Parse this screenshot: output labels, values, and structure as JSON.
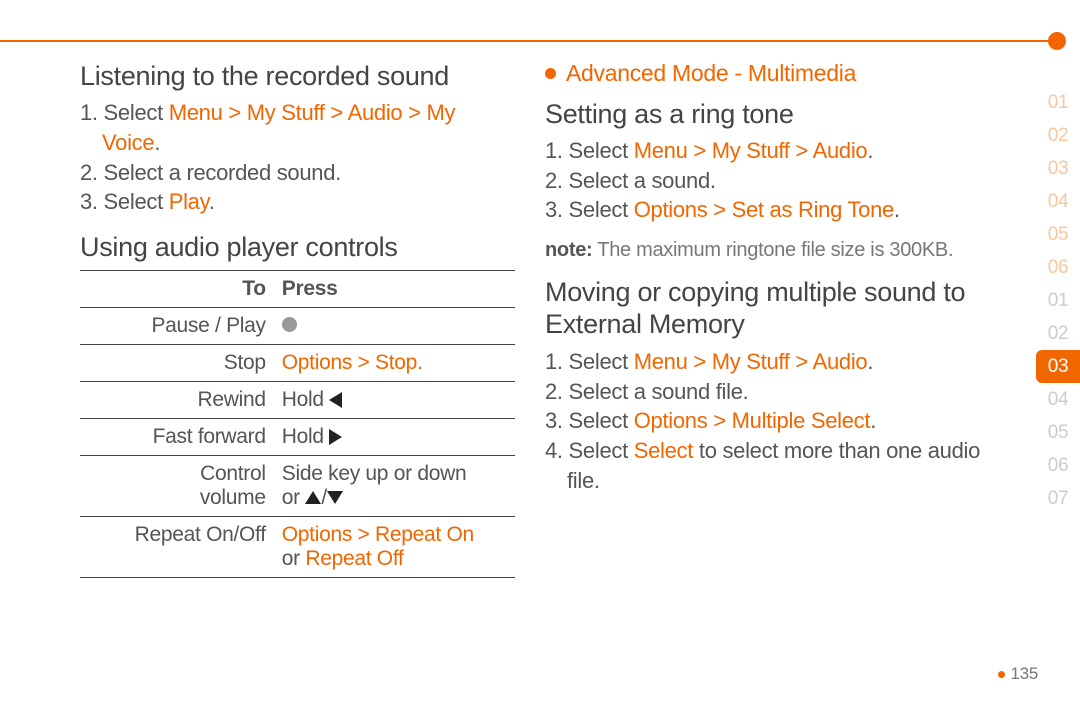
{
  "breadcrumb": "Advanced Mode - Multimedia",
  "page_number": "135",
  "colors": {
    "accent": "#f26600",
    "text": "#444444",
    "muted": "#777777"
  },
  "left": {
    "h1": "Listening to the recorded sound",
    "steps1": {
      "s1a": "1. Select ",
      "s1b": "Menu > My Stuff > Audio > My Voice",
      "s1c": ".",
      "s2": "2. Select a recorded sound.",
      "s3a": "3. Select ",
      "s3b": "Play",
      "s3c": "."
    },
    "h2": "Using audio player controls",
    "table": {
      "head_to": "To",
      "head_press": "Press",
      "r1_to": "Pause / Play",
      "r2_to": "Stop",
      "r2_press_hl": "Options > Stop.",
      "r3_to": "Rewind",
      "r3_press": "Hold ",
      "r4_to": "Fast forward",
      "r4_press": "Hold ",
      "r5_to_a": "Control",
      "r5_to_b": "volume",
      "r5_press_a": "Side key up or down",
      "r5_press_b": "or ",
      "r6_to": "Repeat On/Off",
      "r6_a": "Options > Repeat On",
      "r6_b": "or ",
      "r6_c": "Repeat Off"
    }
  },
  "right": {
    "h1": "Setting as a ring tone",
    "ring": {
      "s1a": "1. Select ",
      "s1b": "Menu > My Stuff > Audio",
      "s1c": ".",
      "s2": "2. Select a sound.",
      "s3a": "3. Select ",
      "s3b": "Options > Set as Ring Tone",
      "s3c": "."
    },
    "note_label": "note:",
    "note_text": " The maximum ringtone file size is 300KB.",
    "h2": "Moving or copying multiple sound to External Memory",
    "move": {
      "s1a": "1. Select ",
      "s1b": "Menu > My Stuff > Audio",
      "s1c": ".",
      "s2": "2. Select a sound file.",
      "s3a": "3. Select ",
      "s3b": "Options > Multiple Select",
      "s3c": ".",
      "s4a": "4. Select ",
      "s4b": "Select",
      "s4c": " to select more than one audio file."
    }
  },
  "tabs": {
    "set1": [
      "01",
      "02",
      "03",
      "04",
      "05",
      "06"
    ],
    "set2": [
      "01",
      "02",
      "03",
      "04",
      "05",
      "06",
      "07"
    ],
    "active": "03"
  }
}
